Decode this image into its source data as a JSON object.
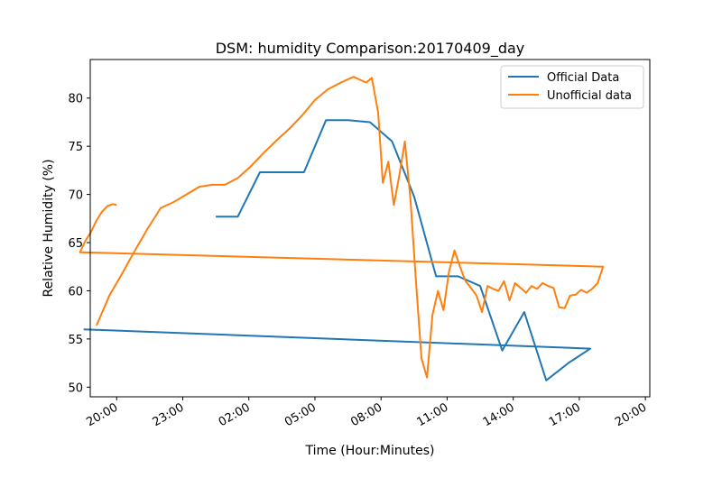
{
  "chart_data": {
    "type": "line",
    "title": "DSM: humidity Comparison:20170409_day",
    "xlabel": "Time (Hour:Minutes)",
    "ylabel": "Relative Humidity (%)",
    "x_unit": "hours",
    "xlim": [
      18.8,
      20.2
    ],
    "x_tick_labels": [
      "20:00",
      "23:00",
      "02:00",
      "05:00",
      "08:00",
      "11:00",
      "14:00",
      "17:00",
      "20:00"
    ],
    "ylim": [
      49,
      84
    ],
    "y_ticks": [
      50,
      55,
      60,
      65,
      70,
      75,
      80
    ],
    "grid": false,
    "legend_position": "top-right",
    "series": [
      {
        "name": "Official Data",
        "color": "#1f77b4",
        "x": [
          "00:30",
          "01:30",
          "02:30",
          "03:30",
          "04:30",
          "05:30",
          "06:30",
          "07:30",
          "08:30",
          "09:30",
          "10:30",
          "11:30",
          "12:30",
          "13:30",
          "14:30",
          "15:30",
          "16:30",
          "17:30",
          "18:30"
        ],
        "y": [
          67.7,
          67.7,
          72.3,
          72.3,
          72.3,
          77.7,
          77.7,
          77.5,
          75.5,
          69.8,
          61.5,
          61.5,
          60.5,
          53.8,
          57.8,
          50.7,
          52.5,
          54.0,
          56.0
        ]
      },
      {
        "name": "Unofficial data",
        "color": "#ff7f0e",
        "x": [
          "19:05",
          "19:40",
          "20:15",
          "20:50",
          "21:25",
          "22:00",
          "22:35",
          "23:10",
          "23:45",
          "00:20",
          "00:55",
          "01:30",
          "02:05",
          "02:40",
          "03:15",
          "03:50",
          "04:25",
          "05:00",
          "05:35",
          "06:10",
          "06:45",
          "07:20",
          "07:35",
          "07:52",
          "08:05",
          "08:20",
          "08:35",
          "08:50",
          "09:05",
          "09:20",
          "09:35",
          "09:50",
          "10:05",
          "10:20",
          "10:35",
          "10:50",
          "11:05",
          "11:20",
          "11:35",
          "11:50",
          "12:05",
          "12:20",
          "12:35",
          "12:50",
          "13:05",
          "13:20",
          "13:35",
          "13:50",
          "14:05",
          "14:20",
          "14:35",
          "14:50",
          "15:05",
          "15:20",
          "15:35",
          "15:50",
          "16:05",
          "16:20",
          "16:35",
          "16:50",
          "17:05",
          "17:20",
          "17:35",
          "17:50",
          "18:05",
          "18:20",
          "18:35",
          "18:50",
          "19:05",
          "19:20",
          "19:35",
          "19:50",
          "20:00"
        ],
        "y": [
          56.4,
          59.5,
          61.8,
          64.2,
          66.5,
          68.6,
          69.2,
          70.0,
          70.8,
          71.0,
          71.0,
          71.7,
          72.9,
          74.3,
          75.6,
          76.8,
          78.2,
          79.8,
          80.9,
          81.6,
          82.2,
          81.6,
          82.1,
          78.5,
          71.2,
          73.4,
          68.9,
          72.0,
          75.5,
          69.5,
          61.0,
          53.0,
          51.0,
          57.5,
          60.0,
          58.0,
          62.0,
          64.2,
          62.5,
          61.0,
          60.3,
          59.5,
          57.8,
          60.5,
          60.2,
          60.0,
          61.0,
          59.0,
          60.8,
          60.3,
          59.8,
          60.5,
          60.2,
          60.8,
          60.5,
          60.3,
          58.3,
          58.2,
          59.5,
          59.6,
          60.1,
          59.8,
          60.2,
          60.8,
          62.5,
          64.0,
          65.2,
          66.1,
          67.3,
          68.2,
          68.8,
          69.0,
          68.9
        ]
      }
    ]
  }
}
